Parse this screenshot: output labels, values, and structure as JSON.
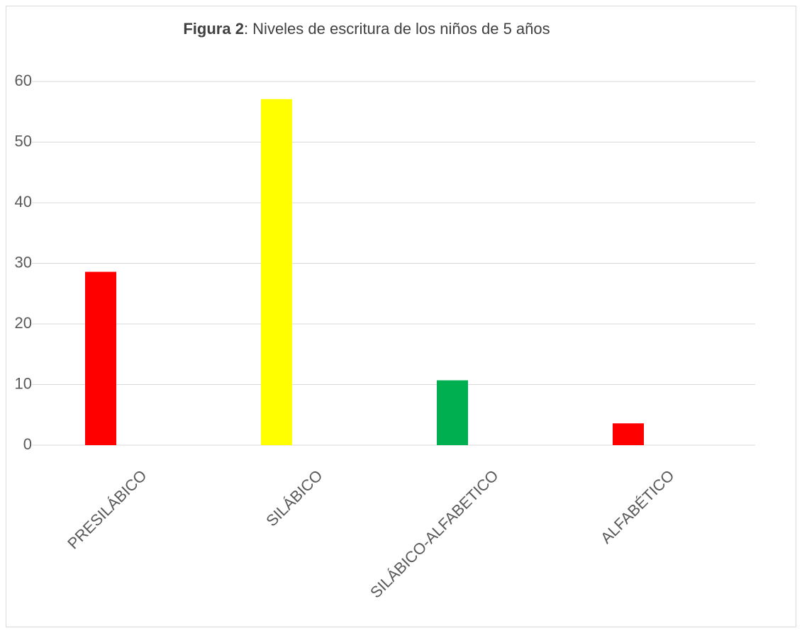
{
  "chart_data": {
    "type": "bar",
    "title": [
      "Figura 2",
      ": Niveles de escritura de los niños de 5 años"
    ],
    "categories": [
      "PRESILÁBICO",
      "SILÁBICO",
      "SILÁBICO-ALFABETICO",
      "ALFABÉTICO"
    ],
    "values": [
      28.6,
      57.1,
      10.7,
      3.6
    ],
    "colors": [
      "#ff0000",
      "#ffff00",
      "#00b050",
      "#ff0000"
    ],
    "ylim": [
      0,
      60
    ],
    "yticks": [
      0,
      10,
      20,
      30,
      40,
      50,
      60
    ],
    "grid": true
  }
}
